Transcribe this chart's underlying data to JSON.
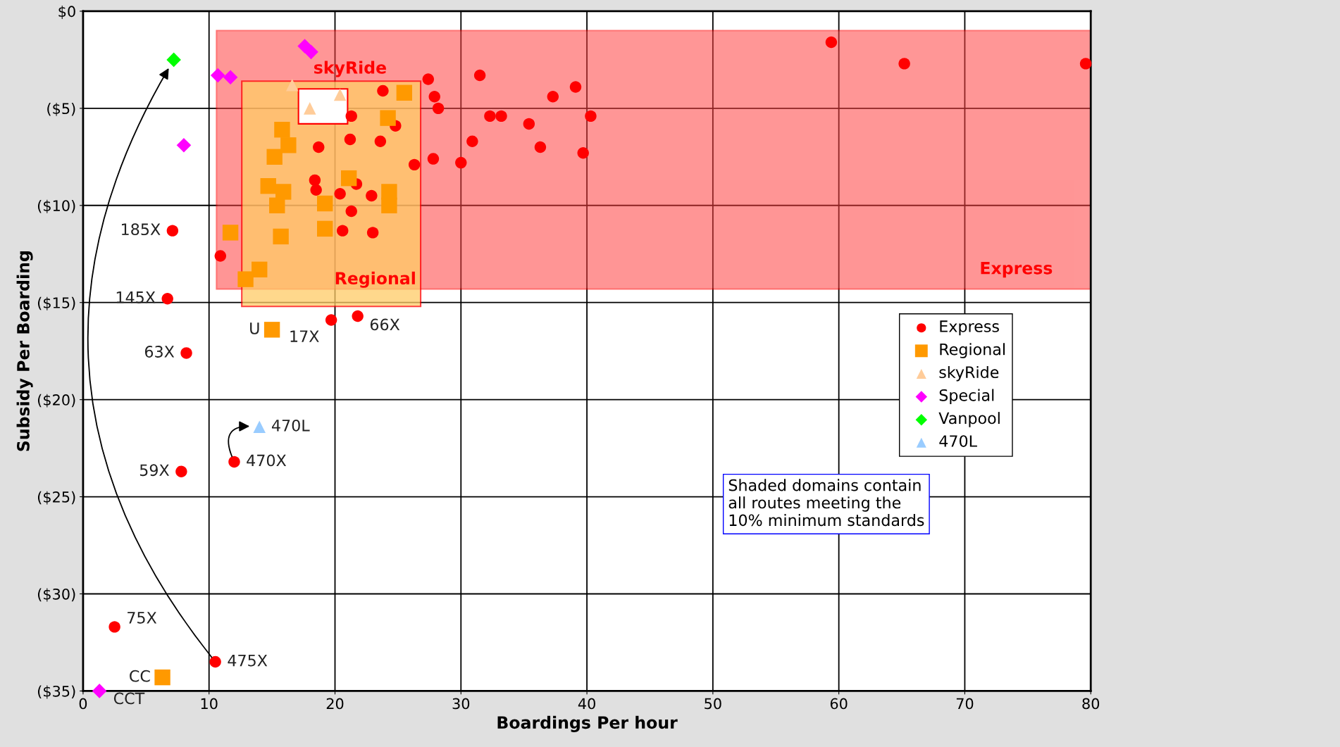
{
  "chart_data": {
    "type": "scatter",
    "xlabel": "Boardings Per hour",
    "ylabel": "Subsidy Per Boarding",
    "xlim": [
      0,
      80
    ],
    "xticks": [
      0,
      10,
      20,
      30,
      40,
      50,
      60,
      70,
      80
    ],
    "ylim": [
      -35,
      0
    ],
    "yticks": [
      {
        "value": 0,
        "label": "$0"
      },
      {
        "value": -5,
        "label": "($5)"
      },
      {
        "value": -10,
        "label": "($10)"
      },
      {
        "value": -15,
        "label": "($15)"
      },
      {
        "value": -20,
        "label": "($20)"
      },
      {
        "value": -25,
        "label": "($25)"
      },
      {
        "value": -30,
        "label": "($30)"
      },
      {
        "value": -35,
        "label": "($35)"
      }
    ],
    "grid": true,
    "legend": "right",
    "series": [
      {
        "type": "area",
        "color": "#ff4040",
        "x": [
          10.6,
          80,
          80,
          10.6
        ],
        "values": [
          -1.0,
          -1.0,
          -14.3,
          -14.3
        ]
      },
      {
        "type": "area",
        "color": "#ffcc66",
        "x": [
          12.6,
          26.8,
          26.8,
          12.6
        ],
        "values": [
          -3.6,
          -3.6,
          -15.2,
          -15.2
        ]
      },
      {
        "type": "area",
        "color": "#ffffff",
        "x": [
          17.1,
          21.0,
          21.0,
          17.1
        ],
        "values": [
          -4.0,
          -4.0,
          -5.8,
          -5.8
        ]
      },
      {
        "name": "Express",
        "color": "#ff0000",
        "marker": "circle",
        "x": [
          59.4,
          65.2,
          79.6,
          27.4,
          27.9,
          28.2,
          31.5,
          37.3,
          39.1,
          40.3,
          32.3,
          33.2,
          35.4,
          36.3,
          39.7,
          30.9,
          30.0,
          27.8,
          26.3,
          23.8,
          21.3,
          21.2,
          18.7,
          23.6,
          24.8,
          18.4,
          18.5,
          20.4,
          21.7,
          22.9,
          21.3,
          20.6,
          23.0,
          10.9,
          7.1,
          6.7,
          8.2,
          7.8,
          12.0,
          19.7,
          21.8,
          2.5,
          10.5
        ],
        "values": [
          -1.6,
          -2.7,
          -2.7,
          -3.5,
          -4.4,
          -5.0,
          -3.3,
          -4.4,
          -3.9,
          -5.4,
          -5.4,
          -5.4,
          -5.8,
          -7.0,
          -7.3,
          -6.7,
          -7.8,
          -7.6,
          -7.9,
          -4.1,
          -5.4,
          -6.6,
          -7.0,
          -6.7,
          -5.9,
          -8.7,
          -9.2,
          -9.4,
          -8.9,
          -9.5,
          -10.3,
          -11.3,
          -11.4,
          -12.6,
          -11.3,
          -14.8,
          -17.6,
          -23.7,
          -23.2,
          -15.9,
          -15.7,
          -31.7,
          -33.5
        ]
      },
      {
        "name": "Regional",
        "color": "#ff9900",
        "marker": "square",
        "x": [
          25.5,
          24.2,
          15.8,
          16.3,
          15.2,
          14.7,
          15.9,
          15.4,
          19.2,
          21.1,
          24.3,
          24.3,
          19.2,
          15.7,
          11.7,
          14.0,
          12.9,
          15.0,
          6.3
        ],
        "values": [
          -4.2,
          -5.5,
          -6.1,
          -6.9,
          -7.5,
          -9.0,
          -9.3,
          -10.0,
          -9.9,
          -8.6,
          -9.3,
          -10.0,
          -11.2,
          -11.6,
          -11.4,
          -13.3,
          -13.8,
          -16.4,
          -34.3
        ]
      },
      {
        "name": "skyRide",
        "color": "#ffcc99",
        "marker": "triangle",
        "x": [
          16.6,
          18.0,
          20.4
        ],
        "values": [
          -3.8,
          -5.0,
          -4.3
        ]
      },
      {
        "name": "Special",
        "color": "#ff00ff",
        "marker": "diamond",
        "x": [
          10.7,
          11.7,
          17.6,
          18.1,
          8.0,
          1.3
        ],
        "values": [
          -3.3,
          -3.4,
          -1.8,
          -2.1,
          -6.9,
          -35.0
        ]
      },
      {
        "name": "Vanpool",
        "color": "#00ff00",
        "marker": "diamond",
        "x": [
          7.2
        ],
        "values": [
          -2.5
        ]
      },
      {
        "name": "470L",
        "color": "#99ccff",
        "marker": "triangle",
        "x": [
          14.0
        ],
        "values": [
          -21.4
        ]
      }
    ],
    "annotations": [
      {
        "text": "185X",
        "x": 7.1,
        "y": -11.3
      },
      {
        "text": "145X",
        "x": 6.7,
        "y": -14.8
      },
      {
        "text": "63X",
        "x": 8.2,
        "y": -17.6
      },
      {
        "text": "59X",
        "x": 7.8,
        "y": -23.7
      },
      {
        "text": "470X",
        "x": 12.0,
        "y": -23.2
      },
      {
        "text": "17X",
        "x": 19.7,
        "y": -15.9
      },
      {
        "text": "66X",
        "x": 21.8,
        "y": -15.7
      },
      {
        "text": "75X",
        "x": 2.5,
        "y": -31.7
      },
      {
        "text": "475X",
        "x": 10.5,
        "y": -33.5
      },
      {
        "text": "CC",
        "x": 6.3,
        "y": -34.3
      },
      {
        "text": "U",
        "x": 15.0,
        "y": -16.4
      },
      {
        "text": "CCT",
        "x": 1.3,
        "y": -35.0
      },
      {
        "text": "470L",
        "x": 14.0,
        "y": -21.4
      },
      "Express",
      "Regional",
      "skyRide",
      "Shaded domains contain\nall routes meeting the\n10% minimum standards"
    ]
  }
}
